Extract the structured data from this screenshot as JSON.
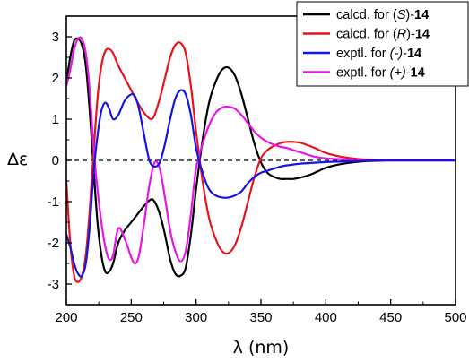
{
  "chart_data": {
    "type": "line",
    "xlabel": "λ (nm)",
    "ylabel": "Δε",
    "xlim": [
      200,
      500
    ],
    "ylim": [
      -3.5,
      3.5
    ],
    "xticks": [
      "200",
      "250",
      "300",
      "350",
      "400",
      "450",
      "500"
    ],
    "yticks": [
      "-3",
      "-2",
      "-1",
      "0",
      "1",
      "2",
      "3"
    ],
    "zero_line": "dashed",
    "legend_position": "top-right",
    "series": [
      {
        "name": "calcd. for (S)-14",
        "name_parts": [
          {
            "text": "calcd. for (",
            "style": "normal"
          },
          {
            "text": "S",
            "style": "italic"
          },
          {
            "text": ")-",
            "style": "normal"
          },
          {
            "text": "14",
            "style": "bold"
          }
        ],
        "color": "#000000",
        "x": [
          200,
          203,
          206,
          209,
          212,
          215,
          218,
          221,
          224,
          227,
          230,
          233,
          236,
          240,
          245,
          250,
          255,
          260,
          265,
          268,
          272,
          276,
          280,
          284,
          288,
          292,
          296,
          300,
          305,
          310,
          315,
          320,
          325,
          330,
          335,
          340,
          345,
          350,
          355,
          360,
          365,
          370,
          375,
          380,
          385,
          390,
          395,
          400,
          410,
          420,
          430,
          440,
          450,
          475,
          500
        ],
        "y": [
          1.9,
          2.5,
          2.9,
          2.95,
          2.8,
          2.3,
          1.2,
          -0.2,
          -1.5,
          -2.3,
          -2.7,
          -2.7,
          -2.5,
          -2.0,
          -1.7,
          -1.5,
          -1.3,
          -1.1,
          -0.95,
          -1.0,
          -1.3,
          -1.8,
          -2.4,
          -2.75,
          -2.8,
          -2.6,
          -1.8,
          -0.7,
          0.5,
          1.4,
          1.9,
          2.2,
          2.25,
          2.05,
          1.6,
          1.0,
          0.4,
          -0.05,
          -0.3,
          -0.4,
          -0.45,
          -0.45,
          -0.45,
          -0.42,
          -0.38,
          -0.32,
          -0.25,
          -0.18,
          -0.1,
          -0.05,
          -0.02,
          -0.01,
          0.0,
          0.0,
          0.0
        ]
      },
      {
        "name": "calcd. for (R)-14",
        "name_parts": [
          {
            "text": "calcd. for (",
            "style": "normal"
          },
          {
            "text": "R",
            "style": "italic"
          },
          {
            "text": ")-",
            "style": "normal"
          },
          {
            "text": "14",
            "style": "bold"
          }
        ],
        "color": "#e8141b",
        "x": [
          200,
          203,
          206,
          209,
          212,
          215,
          218,
          221,
          224,
          227,
          230,
          233,
          236,
          240,
          245,
          250,
          255,
          260,
          265,
          268,
          272,
          276,
          280,
          284,
          288,
          292,
          296,
          300,
          305,
          310,
          315,
          320,
          325,
          330,
          335,
          340,
          345,
          350,
          355,
          360,
          365,
          370,
          375,
          380,
          385,
          390,
          395,
          400,
          410,
          420,
          430,
          440,
          450,
          475,
          500
        ],
        "y": [
          -0.5,
          -2.0,
          -2.8,
          -2.95,
          -2.8,
          -2.3,
          -1.2,
          0.2,
          1.5,
          2.3,
          2.65,
          2.7,
          2.6,
          2.3,
          2.0,
          1.7,
          1.4,
          1.15,
          1.0,
          1.1,
          1.5,
          2.0,
          2.5,
          2.8,
          2.85,
          2.6,
          1.8,
          0.7,
          -0.5,
          -1.4,
          -1.9,
          -2.2,
          -2.25,
          -2.05,
          -1.6,
          -1.0,
          -0.4,
          0.05,
          0.25,
          0.35,
          0.42,
          0.45,
          0.45,
          0.43,
          0.38,
          0.32,
          0.25,
          0.18,
          0.1,
          0.05,
          0.02,
          0.01,
          0.0,
          0.0,
          0.0
        ]
      },
      {
        "name": "exptl. for (-)-14",
        "name_parts": [
          {
            "text": "exptl. for ",
            "style": "normal"
          },
          {
            "text": "(-)",
            "style": "italic"
          },
          {
            "text": "-",
            "style": "normal"
          },
          {
            "text": "14",
            "style": "bold"
          }
        ],
        "color": "#1414e8",
        "x": [
          200,
          203,
          206,
          209,
          212,
          215,
          218,
          221,
          224,
          227,
          230,
          233,
          236,
          240,
          245,
          250,
          253,
          256,
          260,
          264,
          268,
          272,
          276,
          280,
          284,
          288,
          292,
          296,
          300,
          305,
          310,
          315,
          320,
          325,
          330,
          335,
          340,
          345,
          350,
          355,
          360,
          365,
          370,
          375,
          380,
          385,
          390,
          395,
          400,
          410,
          420,
          430,
          440,
          450,
          475,
          500
        ],
        "y": [
          -1.8,
          -2.1,
          -2.5,
          -2.75,
          -2.8,
          -2.5,
          -1.6,
          -0.3,
          0.6,
          1.2,
          1.4,
          1.25,
          1.0,
          1.1,
          1.45,
          1.6,
          1.55,
          1.25,
          0.6,
          0.0,
          -0.15,
          -0.05,
          0.4,
          1.0,
          1.5,
          1.7,
          1.6,
          1.1,
          0.3,
          -0.3,
          -0.7,
          -0.85,
          -0.9,
          -0.9,
          -0.85,
          -0.75,
          -0.55,
          -0.4,
          -0.3,
          -0.25,
          -0.2,
          -0.15,
          -0.12,
          -0.1,
          -0.08,
          -0.07,
          -0.06,
          -0.05,
          -0.04,
          -0.03,
          -0.02,
          -0.01,
          0.0,
          0.0,
          0.0,
          0.0
        ]
      },
      {
        "name": "exptl. for (+)-14",
        "name_parts": [
          {
            "text": "exptl. for ",
            "style": "normal"
          },
          {
            "text": "(+)",
            "style": "italic"
          },
          {
            "text": "-",
            "style": "normal"
          },
          {
            "text": "14",
            "style": "bold"
          }
        ],
        "color": "#e814e8",
        "x": [
          200,
          203,
          206,
          209,
          212,
          215,
          218,
          221,
          224,
          227,
          230,
          233,
          236,
          240,
          245,
          250,
          253,
          256,
          260,
          264,
          268,
          272,
          276,
          280,
          284,
          288,
          292,
          296,
          300,
          305,
          310,
          315,
          320,
          325,
          330,
          335,
          340,
          345,
          350,
          355,
          360,
          365,
          370,
          375,
          380,
          385,
          390,
          395,
          400,
          410,
          420,
          430,
          440,
          450,
          475,
          500
        ],
        "y": [
          1.8,
          2.2,
          2.7,
          2.95,
          2.95,
          2.6,
          1.7,
          0.3,
          -0.7,
          -1.5,
          -2.1,
          -2.4,
          -2.3,
          -1.65,
          -1.9,
          -2.35,
          -2.5,
          -2.3,
          -1.5,
          -0.6,
          -0.05,
          -0.2,
          -0.9,
          -1.7,
          -2.2,
          -2.45,
          -2.2,
          -1.3,
          -0.2,
          0.4,
          0.85,
          1.15,
          1.28,
          1.3,
          1.25,
          1.1,
          0.9,
          0.7,
          0.55,
          0.45,
          0.38,
          0.33,
          0.3,
          0.25,
          0.2,
          0.15,
          0.1,
          0.07,
          0.05,
          0.03,
          0.02,
          0.01,
          0.0,
          0.0,
          0.0,
          0.0
        ]
      }
    ]
  }
}
